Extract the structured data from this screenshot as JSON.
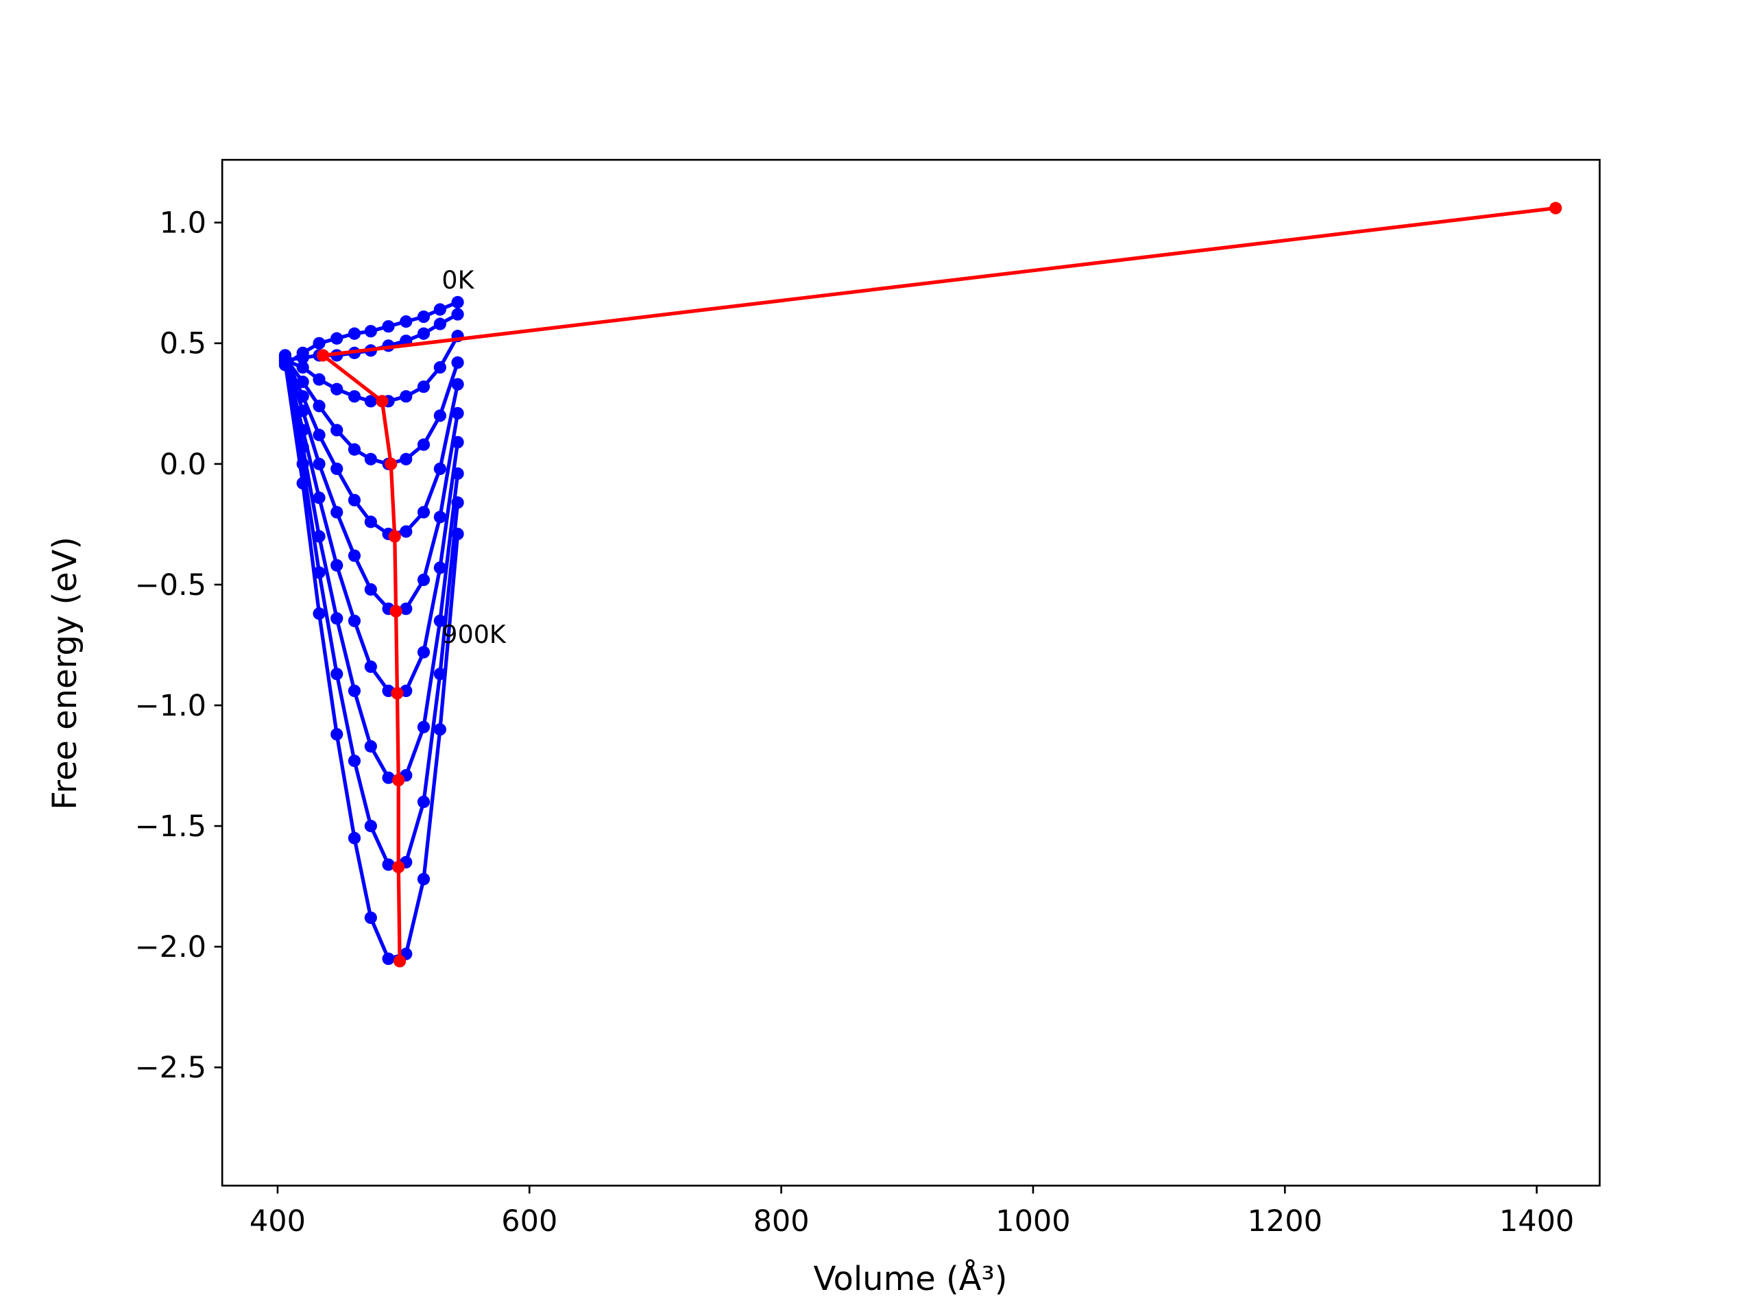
{
  "chart_data": {
    "type": "line",
    "x_label": "Volume (Å³)",
    "y_label": "Free energy (eV)",
    "xlim": [
      356,
      1450
    ],
    "ylim": [
      -2.99,
      1.26
    ],
    "xticks": [
      400,
      600,
      800,
      1000,
      1200,
      1400
    ],
    "yticks": [
      {
        "value": -2.5,
        "label": "−2.5"
      },
      {
        "value": -2,
        "label": "−2.0"
      },
      {
        "value": -1.5,
        "label": "−1.5"
      },
      {
        "value": -1,
        "label": "−1.0"
      },
      {
        "value": -0.5,
        "label": "−0.5"
      },
      {
        "value": 0,
        "label": "0.0"
      },
      0.5,
      {
        "value": 1,
        "label": "1.0"
      }
    ],
    "annotations": [
      "0K",
      "900K"
    ],
    "series": [
      {
        "color": "#0000ff",
        "x": [
          406,
          420,
          433,
          447,
          461,
          474,
          488,
          502,
          516,
          529,
          543
        ],
        "values": [
          0.41,
          0.46,
          0.5,
          0.52,
          0.54,
          0.55,
          0.57,
          0.59,
          0.61,
          0.64,
          0.67
        ]
      },
      {
        "color": "#0000ff",
        "x": [
          406,
          420,
          433,
          447,
          461,
          474,
          488,
          502,
          516,
          529,
          543
        ],
        "values": [
          0.43,
          0.44,
          0.45,
          0.45,
          0.46,
          0.47,
          0.49,
          0.51,
          0.54,
          0.58,
          0.62
        ]
      },
      {
        "color": "#0000ff",
        "x": [
          406,
          420,
          433,
          447,
          461,
          474,
          488,
          502,
          516,
          529,
          543
        ],
        "values": [
          0.43,
          0.4,
          0.35,
          0.31,
          0.28,
          0.26,
          0.26,
          0.28,
          0.32,
          0.4,
          0.53
        ]
      },
      {
        "color": "#0000ff",
        "x": [
          406,
          420,
          433,
          447,
          461,
          474,
          488,
          502,
          516,
          529,
          543
        ],
        "values": [
          0.44,
          0.34,
          0.24,
          0.14,
          0.06,
          0.02,
          0,
          0.02,
          0.08,
          0.2,
          0.42
        ]
      },
      {
        "color": "#0000ff",
        "x": [
          406,
          420,
          433,
          447,
          461,
          474,
          488,
          502,
          516,
          529,
          543
        ],
        "values": [
          0.45,
          0.28,
          0.12,
          -0.02,
          -0.15,
          -0.24,
          -0.29,
          -0.28,
          -0.2,
          -0.02,
          0.33
        ]
      },
      {
        "color": "#0000ff",
        "x": [
          406,
          420,
          433,
          447,
          461,
          474,
          488,
          502,
          516,
          529,
          543
        ],
        "values": [
          0.45,
          0.22,
          0,
          -0.2,
          -0.38,
          -0.52,
          -0.6,
          -0.6,
          -0.48,
          -0.22,
          0.21
        ]
      },
      {
        "color": "#0000ff",
        "x": [
          406,
          420,
          433,
          447,
          461,
          474,
          488,
          502,
          516,
          529,
          543
        ],
        "values": [
          0.44,
          0.14,
          -0.14,
          -0.42,
          -0.65,
          -0.84,
          -0.94,
          -0.94,
          -0.78,
          -0.43,
          0.09
        ]
      },
      {
        "color": "#0000ff",
        "x": [
          406,
          420,
          433,
          447,
          461,
          474,
          488,
          502,
          516,
          529,
          543
        ],
        "values": [
          0.44,
          0.07,
          -0.3,
          -0.64,
          -0.94,
          -1.17,
          -1.3,
          -1.29,
          -1.09,
          -0.65,
          -0.04
        ]
      },
      {
        "color": "#0000ff",
        "x": [
          406,
          420,
          433,
          447,
          461,
          474,
          488,
          502,
          516,
          529,
          543
        ],
        "values": [
          0.43,
          0,
          -0.45,
          -0.87,
          -1.23,
          -1.5,
          -1.66,
          -1.65,
          -1.4,
          -0.87,
          -0.16
        ]
      },
      {
        "color": "#0000ff",
        "x": [
          406,
          420,
          433,
          447,
          461,
          474,
          488,
          502,
          516,
          529,
          543
        ],
        "values": [
          0.42,
          -0.08,
          -0.62,
          -1.12,
          -1.55,
          -1.88,
          -2.05,
          -2.03,
          -1.72,
          -1.1,
          -0.29
        ]
      },
      {
        "color": "#ff0000",
        "x": [
          1415,
          436,
          483,
          490,
          493,
          494,
          495,
          496,
          496,
          497
        ],
        "values": [
          1.06,
          0.45,
          0.26,
          0,
          -0.3,
          -0.61,
          -0.95,
          -1.31,
          -1.67,
          -2.06
        ]
      }
    ]
  }
}
